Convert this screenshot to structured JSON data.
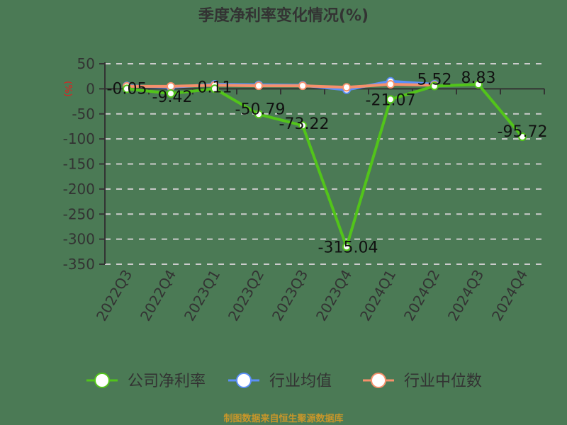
{
  "title": "季度净利率变化情况(%)",
  "source": "制图数据来自恒生聚源数据库",
  "colors": {
    "background": "#4b7a55",
    "company": "#52c41a",
    "industry_avg": "#5b8ff9",
    "industry_median": "#f6906b",
    "axis_unit": "#e02020",
    "text": "#333333",
    "grid": "#cccccc"
  },
  "chart_data": {
    "type": "line",
    "title": "季度净利率变化情况(%)",
    "xlabel": "",
    "ylabel": "(%)",
    "ylim": [
      -350,
      50
    ],
    "yticks": [
      50,
      0,
      -50,
      -100,
      -150,
      -200,
      -250,
      -300,
      -350
    ],
    "grid": true,
    "legend_position": "bottom",
    "categories": [
      "2022Q3",
      "2022Q4",
      "2023Q1",
      "2023Q2",
      "2023Q3",
      "2023Q4",
      "2024Q1",
      "2024Q2",
      "2024Q3",
      "2024Q4"
    ],
    "series": [
      {
        "name": "公司净利率",
        "values": [
          -0.05,
          -9.42,
          0.11,
          -50.79,
          -73.22,
          -315.04,
          -21.07,
          5.52,
          8.83,
          -95.72
        ],
        "labels": [
          "-0.05",
          "-9.42",
          "0.11",
          "-50.79",
          "-73.22",
          "-315.04",
          "-21.07",
          "5.52",
          "8.83",
          "-95.72"
        ]
      },
      {
        "name": "行业均值",
        "values": [
          6,
          3,
          9,
          8,
          7,
          -2,
          15,
          9,
          null,
          null
        ]
      },
      {
        "name": "行业中位数",
        "values": [
          5,
          5,
          7,
          6,
          6,
          3,
          9,
          7,
          null,
          null
        ]
      }
    ]
  },
  "legend": [
    {
      "label": "公司净利率",
      "color": "#52c41a"
    },
    {
      "label": "行业均值",
      "color": "#5b8ff9"
    },
    {
      "label": "行业中位数",
      "color": "#f6906b"
    }
  ],
  "axis": {
    "unit_label": "(%)"
  }
}
